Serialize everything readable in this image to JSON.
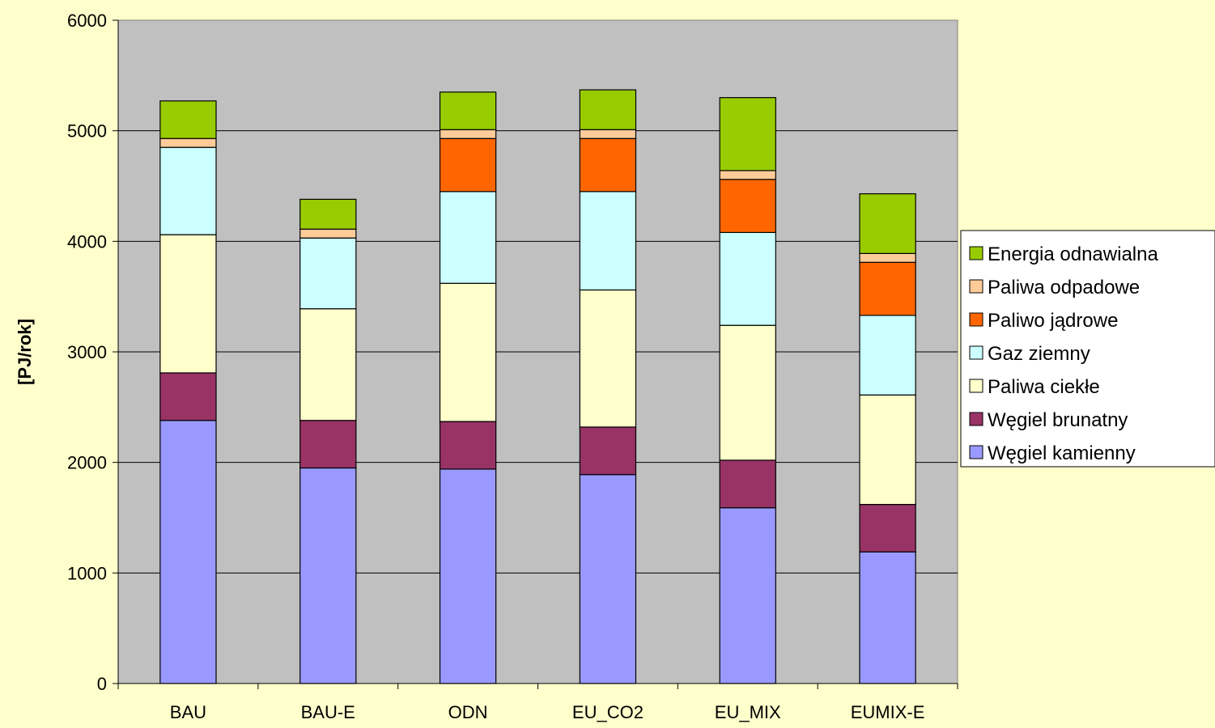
{
  "chart_data": {
    "type": "bar",
    "stacked": true,
    "ylabel": "[PJ/rok]",
    "xlabel": "",
    "ylim": [
      0,
      6000
    ],
    "yticks": [
      "0",
      "1000",
      "2000",
      "3000",
      "4000",
      "5000",
      "6000"
    ],
    "grid": "horizontal",
    "legend_position": "right",
    "plot_background": "#c0c0c0",
    "page_background": "#ffffcc",
    "categories": [
      "BAU",
      "BAU-E",
      "ODN",
      "EU_CO2",
      "EU_MIX",
      "EUMIX-E"
    ],
    "series": [
      {
        "name": "Węgiel kamienny",
        "color": "#9999ff",
        "values": [
          2380,
          1950,
          1940,
          1890,
          1590,
          1190
        ]
      },
      {
        "name": "Węgiel brunatny",
        "color": "#993366",
        "values": [
          430,
          430,
          430,
          430,
          430,
          430
        ]
      },
      {
        "name": "Paliwa ciekłe",
        "color": "#ffffcc",
        "values": [
          1250,
          1010,
          1250,
          1240,
          1220,
          990
        ]
      },
      {
        "name": "Gaz ziemny",
        "color": "#ccffff",
        "values": [
          790,
          640,
          830,
          890,
          840,
          720
        ]
      },
      {
        "name": "Paliwo jądrowe",
        "color": "#ff6600",
        "values": [
          0,
          0,
          480,
          480,
          480,
          480
        ]
      },
      {
        "name": "Paliwa odpadowe",
        "color": "#ffcc99",
        "values": [
          80,
          80,
          80,
          80,
          80,
          80
        ]
      },
      {
        "name": "Energia odnawialna",
        "color": "#99cc00",
        "values": [
          340,
          270,
          340,
          360,
          660,
          540
        ]
      }
    ]
  }
}
